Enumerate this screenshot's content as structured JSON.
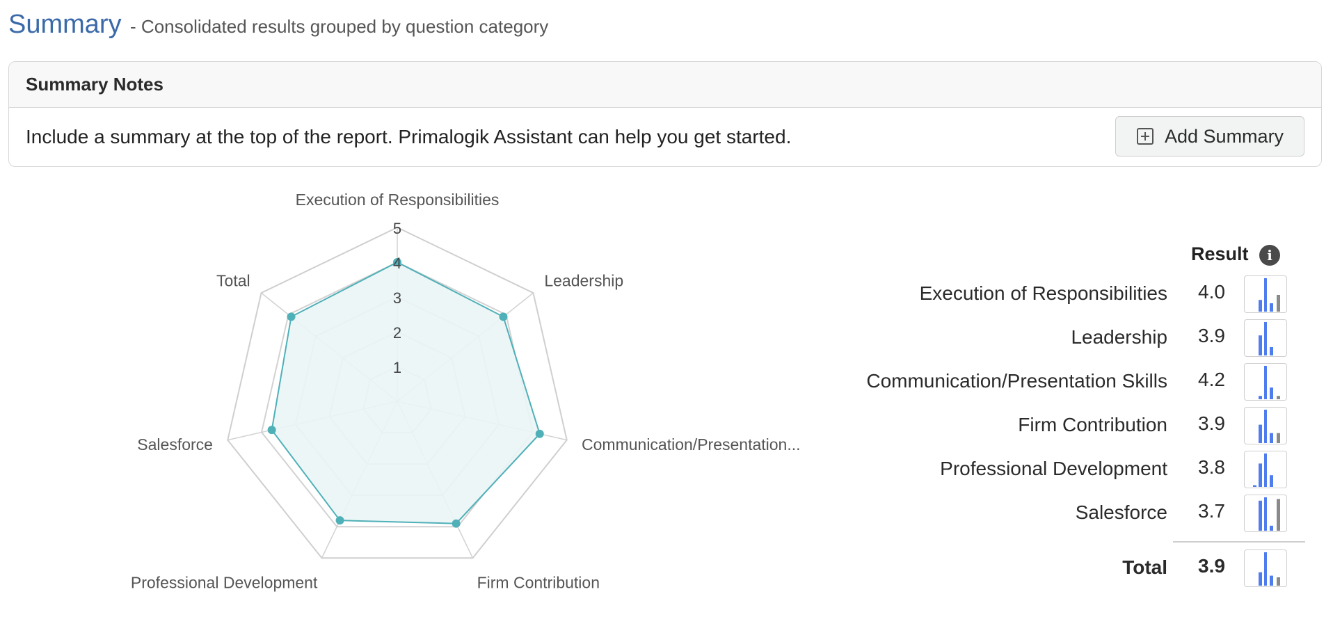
{
  "header": {
    "title": "Summary",
    "subtitle": "- Consolidated results grouped by question category"
  },
  "notes": {
    "heading": "Summary Notes",
    "text": "Include a summary at the top of the report. Primalogik Assistant can help you get started.",
    "button_label": "Add Summary",
    "button_icon": "plus-square-icon"
  },
  "results": {
    "heading": "Result",
    "info_icon": "info-icon",
    "rows": [
      {
        "label": "Execution of Responsibilities",
        "value": "4.0"
      },
      {
        "label": "Leadership",
        "value": "3.9"
      },
      {
        "label": "Communication/Presentation Skills",
        "value": "4.2"
      },
      {
        "label": "Firm Contribution",
        "value": "3.9"
      },
      {
        "label": "Professional Development",
        "value": "3.8"
      },
      {
        "label": "Salesforce",
        "value": "3.7"
      }
    ],
    "total": {
      "label": "Total",
      "value": "3.9"
    }
  },
  "colors": {
    "accent": "#3b6aa8",
    "radar_line": "#4fb0b8",
    "radar_fill": "#eaf5f6",
    "bar_blue": "#4f7dee",
    "bar_gray": "#8a8a8a"
  },
  "chart_data": {
    "type": "radar",
    "categories": [
      "Execution of Responsibilities",
      "Leadership",
      "Communication/Presentation...",
      "Firm Contribution",
      "Professional Development",
      "Salesforce",
      "Total"
    ],
    "values": [
      4.0,
      3.9,
      4.2,
      3.9,
      3.8,
      3.7,
      3.9
    ],
    "scale": [
      0,
      5
    ],
    "tick_labels": [
      "1",
      "2",
      "3",
      "4",
      "5"
    ],
    "distributions": [
      [
        0.0,
        0.35,
        1.0,
        0.25,
        0.5
      ],
      [
        0.0,
        0.6,
        1.0,
        0.25,
        0.0
      ],
      [
        0.0,
        0.1,
        1.0,
        0.35,
        0.1
      ],
      [
        0.0,
        0.55,
        1.0,
        0.3,
        0.3
      ],
      [
        0.05,
        0.7,
        1.0,
        0.35,
        0.0
      ],
      [
        0.0,
        0.9,
        1.0,
        0.15,
        0.95
      ],
      [
        0.0,
        0.4,
        1.0,
        0.3,
        0.25
      ]
    ]
  }
}
